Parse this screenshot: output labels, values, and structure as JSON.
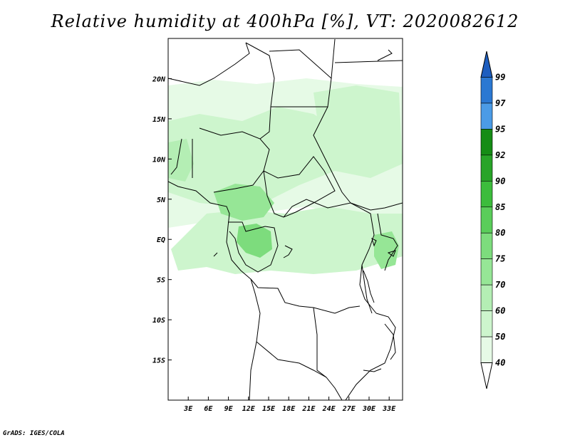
{
  "title": "Relative humidity at 400hPa [%], VT: 2020082612",
  "credit": "GrADS: IGES/COLA",
  "map": {
    "lon_labels": [
      "3E",
      "6E",
      "9E",
      "12E",
      "15E",
      "18E",
      "21E",
      "24E",
      "27E",
      "30E",
      "33E"
    ],
    "lat_labels": [
      "20N",
      "15N",
      "10N",
      "5N",
      "EQ",
      "5S",
      "10S",
      "15S"
    ],
    "lon_values": [
      3,
      6,
      9,
      12,
      15,
      18,
      21,
      24,
      27,
      30,
      33
    ],
    "lat_values": [
      20,
      15,
      10,
      5,
      0,
      -5,
      -10,
      -15
    ],
    "lon_range": [
      0,
      35
    ],
    "lat_range": [
      -20,
      25
    ],
    "border_color": "#000000"
  },
  "colorbar": {
    "levels": [
      "40",
      "50",
      "60",
      "70",
      "75",
      "80",
      "85",
      "90",
      "92",
      "95",
      "97",
      "99"
    ],
    "colors": [
      "#ffffff",
      "#e6fae6",
      "#cdf5cd",
      "#b4eeb4",
      "#96e696",
      "#7ddc7d",
      "#5acd5a",
      "#3cbc3c",
      "#28a428",
      "#158c15",
      "#4b9be6",
      "#2b78d2",
      "#1e5ebf"
    ]
  },
  "humidity_field": {
    "scale_percent": [
      40,
      99
    ],
    "regions": [
      {
        "name": "sahel-band",
        "level": 50
      },
      {
        "name": "west-africa",
        "level": 60
      },
      {
        "name": "cameroon-nigeria",
        "level": 75
      },
      {
        "name": "gabon-congo",
        "level": 80
      },
      {
        "name": "central-basin",
        "level": 60
      },
      {
        "name": "east-africa-lakes",
        "level": 75
      },
      {
        "name": "sudan-band",
        "level": 50
      }
    ]
  }
}
